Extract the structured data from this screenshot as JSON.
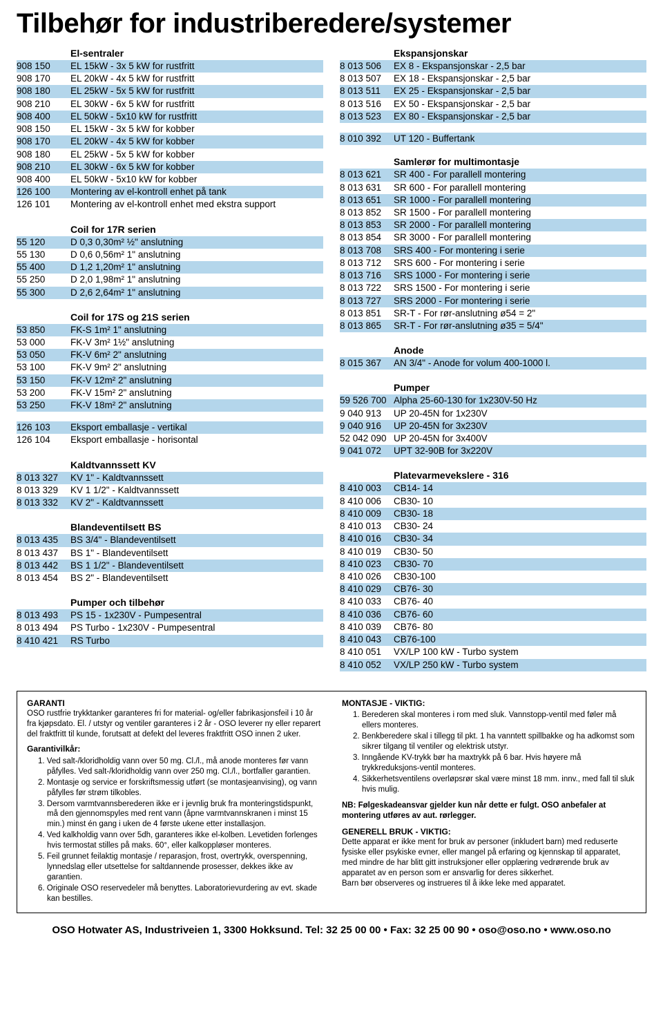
{
  "title": "Tilbehør for industriberedere/systemer",
  "shaded_color": "#b4d6eb",
  "left": {
    "el_sentraler": {
      "header": "El-sentraler",
      "rows": [
        {
          "code": "908 150",
          "desc": "EL 15kW - 3x  5 kW for rustfritt",
          "shaded": true
        },
        {
          "code": "908 170",
          "desc": "EL 20kW - 4x  5 kW for rustfritt",
          "shaded": false
        },
        {
          "code": "908 180",
          "desc": "EL 25kW - 5x  5 kW for rustfritt",
          "shaded": true
        },
        {
          "code": "908 210",
          "desc": "EL 30kW - 6x  5 kW for rustfritt",
          "shaded": false
        },
        {
          "code": "908 400",
          "desc": "EL 50kW - 5x10 kW for rustfritt",
          "shaded": true
        },
        {
          "code": "908 150",
          "desc": "EL 15kW - 3x  5 kW for kobber",
          "shaded": false
        },
        {
          "code": "908 170",
          "desc": "EL 20kW - 4x  5 kW for kobber",
          "shaded": true
        },
        {
          "code": "908 180",
          "desc": "EL 25kW - 5x  5 kW for kobber",
          "shaded": false
        },
        {
          "code": "908 210",
          "desc": "EL 30kW - 6x  5 kW for kobber",
          "shaded": true
        },
        {
          "code": "908 400",
          "desc": "EL 50kW - 5x10 kW for kobber",
          "shaded": false
        },
        {
          "code": "126 100",
          "desc": "Montering av el-kontroll enhet på tank",
          "shaded": true
        },
        {
          "code": "126 101",
          "desc": "Montering av el-kontroll enhet med ekstra support",
          "shaded": false
        }
      ]
    },
    "coil17r": {
      "header": "Coil for 17R serien",
      "rows": [
        {
          "code": "55 120",
          "desc": "D 0,3    0,30m²    ½\"  anslutning",
          "shaded": true
        },
        {
          "code": "55 130",
          "desc": "D 0,6    0,56m²    1\"   anslutning",
          "shaded": false
        },
        {
          "code": "55 400",
          "desc": "D 1,2    1,20m²    1\"   anslutning",
          "shaded": true
        },
        {
          "code": "55 250",
          "desc": "D 2,0    1,98m²    1\"   anslutning",
          "shaded": false
        },
        {
          "code": "55 300",
          "desc": "D 2,6    2,64m²    1\"   anslutning",
          "shaded": true
        }
      ]
    },
    "coil17s": {
      "header": "Coil for 17S og 21S serien",
      "rows": [
        {
          "code": "53 850",
          "desc": "FK-S    1m²     1\"    anslutning",
          "shaded": true
        },
        {
          "code": "53 000",
          "desc": "FK-V    3m²     1½\" anslutning",
          "shaded": false
        },
        {
          "code": "53 050",
          "desc": "FK-V    6m²     2\"    anslutning",
          "shaded": true
        },
        {
          "code": "53 100",
          "desc": "FK-V    9m²     2\"    anslutning",
          "shaded": false
        },
        {
          "code": "53 150",
          "desc": "FK-V    12m²   2\"    anslutning",
          "shaded": true
        },
        {
          "code": "53 200",
          "desc": "FK-V    15m²   2\"    anslutning",
          "shaded": false
        },
        {
          "code": "53 250",
          "desc": "FK-V    18m²   2\"    anslutning",
          "shaded": true
        }
      ]
    },
    "eksport": {
      "rows": [
        {
          "code": "126 103",
          "desc": "Eksport emballasje - vertikal",
          "shaded": true
        },
        {
          "code": "126 104",
          "desc": "Eksport emballasje - horisontal",
          "shaded": false
        }
      ]
    },
    "kaldtvann": {
      "header": "Kaldtvannssett KV",
      "rows": [
        {
          "code": "8 013 327",
          "desc": "KV 1\" - Kaldtvannssett",
          "shaded": true
        },
        {
          "code": "8 013 329",
          "desc": "KV 1 1/2\" - Kaldtvannssett",
          "shaded": false
        },
        {
          "code": "8 013 332",
          "desc": "KV 2\" - Kaldtvannssett",
          "shaded": true
        }
      ]
    },
    "blandeventil": {
      "header": "Blandeventilsett BS",
      "rows": [
        {
          "code": "8 013 435",
          "desc": "BS 3/4\" - Blandeventilsett",
          "shaded": true
        },
        {
          "code": "8 013 437",
          "desc": "BS 1\" - Blandeventilsett",
          "shaded": false
        },
        {
          "code": "8 013 442",
          "desc": "BS 1 1/2\" - Blandeventilsett",
          "shaded": true
        },
        {
          "code": "8 013 454",
          "desc": "BS 2\"  - Blandeventilsett",
          "shaded": false
        }
      ]
    },
    "pumper_tilbehor": {
      "header": "Pumper och tilbehør",
      "rows": [
        {
          "code": "8 013 493",
          "desc": "PS 15 - 1x230V - Pumpesentral",
          "shaded": true
        },
        {
          "code": "8 013 494",
          "desc": "PS Turbo - 1x230V - Pumpesentral",
          "shaded": false
        },
        {
          "code": "8 410 421",
          "desc": "RS Turbo",
          "shaded": true
        }
      ]
    }
  },
  "right": {
    "ekspansjon": {
      "header": "Ekspansjonskar",
      "rows": [
        {
          "code": "8 013 506",
          "desc": "EX 8 - Ekspansjonskar - 2,5 bar",
          "shaded": true
        },
        {
          "code": "8 013 507",
          "desc": "EX 18  - Ekspansjonskar - 2,5 bar",
          "shaded": false
        },
        {
          "code": "8 013 511",
          "desc": "EX 25 - Ekspansjonskar - 2,5 bar",
          "shaded": true
        },
        {
          "code": "8 013 516",
          "desc": "EX 50  - Ekspansjonskar - 2,5 bar",
          "shaded": false
        },
        {
          "code": "8 013 523",
          "desc": "EX 80 - Ekspansjonskar - 2,5 bar",
          "shaded": true
        }
      ]
    },
    "buffer": {
      "rows": [
        {
          "code": "8 010 392",
          "desc": "UT 120 - Buffertank",
          "shaded": true
        }
      ]
    },
    "samleror": {
      "header": "Samlerør for multimontasje",
      "rows": [
        {
          "code": "8 013 621",
          "desc": "SR   400 - For parallell montering",
          "shaded": true
        },
        {
          "code": "8 013 631",
          "desc": "SR   600 - For parallell montering",
          "shaded": false
        },
        {
          "code": "8 013 651",
          "desc": "SR 1000 - For parallell montering",
          "shaded": true
        },
        {
          "code": "8 013 852",
          "desc": "SR 1500 - For parallell montering",
          "shaded": false
        },
        {
          "code": "8 013 853",
          "desc": "SR 2000 - For parallell montering",
          "shaded": true
        },
        {
          "code": "8 013 854",
          "desc": "SR 3000 - For parallell montering",
          "shaded": false
        },
        {
          "code": "8 013 708",
          "desc": "SRS  400 - For montering i serie",
          "shaded": true
        },
        {
          "code": "8 013 712",
          "desc": "SRS  600 - For montering i serie",
          "shaded": false
        },
        {
          "code": "8 013 716",
          "desc": "SRS 1000 - For montering i serie",
          "shaded": true
        },
        {
          "code": "8 013 722",
          "desc": "SRS 1500 - For montering i serie",
          "shaded": false
        },
        {
          "code": "8 013 727",
          "desc": "SRS 2000 - For montering i serie",
          "shaded": true
        },
        {
          "code": "8 013 851",
          "desc": "SR-T - For rør-anslutning ø54 = 2\"",
          "shaded": false
        },
        {
          "code": "8 013 865",
          "desc": "SR-T - For rør-anslutning ø35 = 5/4\"",
          "shaded": true
        }
      ]
    },
    "anode": {
      "header": "Anode",
      "rows": [
        {
          "code": "8 015 367",
          "desc": "AN 3/4\" - Anode for volum 400-1000 l.",
          "shaded": true
        }
      ]
    },
    "pumper": {
      "header": "Pumper",
      "rows": [
        {
          "code": "59 526 700",
          "desc": "Alpha 25-60-130 for 1x230V-50 Hz",
          "shaded": true
        },
        {
          "code": "9 040 913",
          "desc": "UP 20-45N for 1x230V",
          "shaded": false
        },
        {
          "code": "9 040 916",
          "desc": "UP 20-45N for 3x230V",
          "shaded": true
        },
        {
          "code": "52 042 090",
          "desc": "UP 20-45N for 3x400V",
          "shaded": false
        },
        {
          "code": "9 041 072",
          "desc": "UPT 32-90B for 3x220V",
          "shaded": true
        }
      ]
    },
    "plate": {
      "header": "Platevarmevekslere - 316",
      "rows": [
        {
          "code": "8 410 003",
          "desc": "CB14-  14",
          "shaded": true
        },
        {
          "code": "8 410 006",
          "desc": "CB30-  10",
          "shaded": false
        },
        {
          "code": "8 410 009",
          "desc": "CB30-  18",
          "shaded": true
        },
        {
          "code": "8 410 013",
          "desc": "CB30-  24",
          "shaded": false
        },
        {
          "code": "8 410 016",
          "desc": "CB30-  34",
          "shaded": true
        },
        {
          "code": "8 410 019",
          "desc": "CB30-  50",
          "shaded": false
        },
        {
          "code": "8 410 023",
          "desc": "CB30-  70",
          "shaded": true
        },
        {
          "code": "8 410 026",
          "desc": "CB30-100",
          "shaded": false
        },
        {
          "code": "8 410 029",
          "desc": "CB76-  30",
          "shaded": true
        },
        {
          "code": "8 410 033",
          "desc": "CB76-  40",
          "shaded": false
        },
        {
          "code": "8 410 036",
          "desc": "CB76-  60",
          "shaded": true
        },
        {
          "code": "8 410 039",
          "desc": "CB76-  80",
          "shaded": false
        },
        {
          "code": "8 410 043",
          "desc": "CB76-100",
          "shaded": true
        },
        {
          "code": "8 410 051",
          "desc": "VX/LP 100 kW - Turbo system",
          "shaded": false
        },
        {
          "code": "8 410 052",
          "desc": "VX/LP 250 kW - Turbo system",
          "shaded": true
        }
      ]
    }
  },
  "garanti": {
    "heading": "GARANTI",
    "intro": "OSO rustfrie trykktanker garanteres fri for material- og/eller fabrikasjonsfeil i 10 år fra kjøpsdato. El. / utstyr og ventiler garanteres i 2 år - OSO leverer ny eller reparert del fraktfritt til kunde, forutsatt at defekt del leveres fraktfritt OSO innen 2 uker.",
    "vilkar_heading": "Garantivilkår:",
    "vilkar": [
      "Ved salt-/kloridholdig vann over 50 mg. Cl./l., må anode monteres før vann påfylles. Ved salt-/kloridholdig vann over 250 mg. Cl./l., bortfaller garantien.",
      "Montasje og service er forskriftsmessig utført (se montasjeanvising), og vann påfylles før strøm tilkobles.",
      "Dersom varmtvannsberederen ikke er i jevnlig bruk fra monteringstidspunkt, må den gjennomspyles med rent vann (åpne varmtvannskranen i minst 15 min.) minst én gang i uken de 4 første ukene etter installasjon.",
      "Ved kalkholdig vann over 5dh, garanteres ikke el-kolben. Levetiden forlenges hvis termostat stilles på maks. 60°, eller kalkoppløser monteres.",
      "Feil grunnet feilaktig montasje / reparasjon, frost, overtrykk, overspenning, lynnedslag eller utsettelse for saltdannende prosesser, dekkes ikke av garantien.",
      "Originale OSO reservedeler må benyttes. Laboratorievurdering av evt. skade kan bestilles."
    ]
  },
  "montasje": {
    "heading": "MONTASJE - VIKTIG:",
    "items": [
      "Berederen skal monteres i rom med sluk. Vannstopp-ventil med føler må ellers monteres.",
      "Benkberedere skal i tillegg til pkt. 1 ha vanntett spillbakke og ha adkomst som sikrer tilgang til ventiler og elektrisk utstyr.",
      "Inngående KV-trykk bør ha maxtrykk på 6 bar. Hvis høyere må trykkreduksjons-ventil monteres.",
      "Sikkerhetsventilens overløpsrør skal være minst 18 mm. innv., med fall til sluk hvis mulig."
    ],
    "nb": "NB: Følgeskadeansvar gjelder kun når dette er fulgt. OSO anbefaler at montering utføres av aut. rørlegger."
  },
  "generell": {
    "heading": "GENERELL BRUK - VIKTIG:",
    "text1": "Dette apparat er ikke ment for bruk av personer (inkludert barn) med reduserte fysiske eller psykiske evner, eller mangel på erfaring og kjennskap til apparatet, med mindre de har blitt gitt instruksjoner eller opplæring vedrørende bruk av apparatet av en person som er ansvarlig for deres sikkerhet.",
    "text2": "Barn bør observeres og instrueres til å ikke leke med apparatet."
  },
  "footer": "OSO Hotwater AS, Industriveien 1, 3300 Hokksund.  Tel: 32 25 00 00  •  Fax: 32 25 00 90  •  oso@oso.no  •  www.oso.no"
}
